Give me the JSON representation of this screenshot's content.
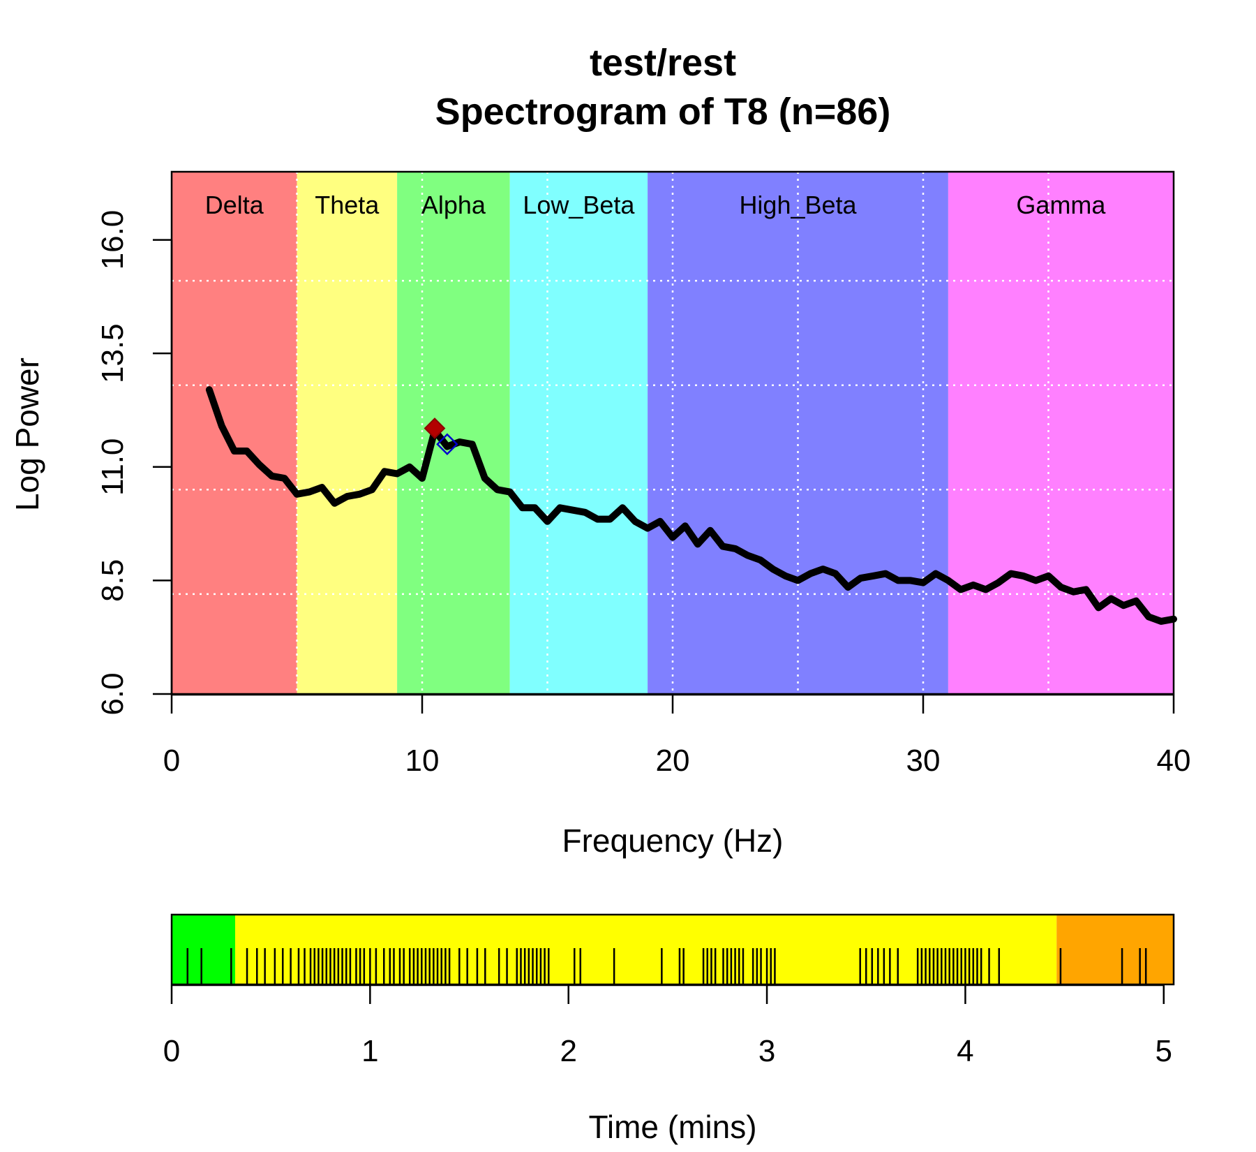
{
  "chart_data": [
    {
      "type": "line",
      "title_line1": "test/rest",
      "title_line2": "Spectrogram of T8 (n=86)",
      "xlabel": "Frequency (Hz)",
      "ylabel": "Log Power",
      "xlim": [
        0,
        40
      ],
      "ylim": [
        6.0,
        17.5
      ],
      "xticks": [
        0,
        10,
        20,
        30,
        40
      ],
      "xtick_labels": [
        "0",
        "10",
        "20",
        "30",
        "40"
      ],
      "yticks": [
        6.0,
        8.5,
        11.0,
        13.5,
        16.0
      ],
      "ytick_labels": [
        "6.0",
        "8.5",
        "11.0",
        "13.5",
        "16.0"
      ],
      "grid_x": [
        5,
        10,
        15,
        20,
        25,
        30,
        35
      ],
      "grid_y": [
        8.2,
        10.5,
        12.8,
        15.1
      ],
      "bands": [
        {
          "name": "Delta",
          "from": 0,
          "to": 5,
          "color": "#ff8080"
        },
        {
          "name": "Theta",
          "from": 5,
          "to": 9,
          "color": "#ffff80"
        },
        {
          "name": "Alpha",
          "from": 9,
          "to": 13.5,
          "color": "#80ff80"
        },
        {
          "name": "Low_Beta",
          "from": 13.5,
          "to": 19,
          "color": "#80ffff"
        },
        {
          "name": "High_Beta",
          "from": 19,
          "to": 31,
          "color": "#8080ff"
        },
        {
          "name": "Gamma",
          "from": 31,
          "to": 40,
          "color": "#ff80ff"
        }
      ],
      "series": [
        {
          "name": "T8",
          "color": "#000000",
          "points": [
            [
              1.5,
              12.7
            ],
            [
              2.0,
              11.9
            ],
            [
              2.5,
              11.35
            ],
            [
              3.0,
              11.35
            ],
            [
              3.5,
              11.05
            ],
            [
              4.0,
              10.8
            ],
            [
              4.5,
              10.75
            ],
            [
              5.0,
              10.4
            ],
            [
              5.5,
              10.45
            ],
            [
              6.0,
              10.55
            ],
            [
              6.5,
              10.2
            ],
            [
              7.0,
              10.35
            ],
            [
              7.5,
              10.4
            ],
            [
              8.0,
              10.5
            ],
            [
              8.5,
              10.9
            ],
            [
              9.0,
              10.85
            ],
            [
              9.5,
              11.0
            ],
            [
              10.0,
              10.75
            ],
            [
              10.5,
              11.8
            ],
            [
              11.0,
              11.45
            ],
            [
              11.5,
              11.55
            ],
            [
              12.0,
              11.5
            ],
            [
              12.5,
              10.75
            ],
            [
              13.0,
              10.5
            ],
            [
              13.5,
              10.45
            ],
            [
              14.0,
              10.1
            ],
            [
              14.5,
              10.1
            ],
            [
              15.0,
              9.8
            ],
            [
              15.5,
              10.1
            ],
            [
              16.0,
              10.05
            ],
            [
              16.5,
              10.0
            ],
            [
              17.0,
              9.85
            ],
            [
              17.5,
              9.85
            ],
            [
              18.0,
              10.1
            ],
            [
              18.5,
              9.8
            ],
            [
              19.0,
              9.65
            ],
            [
              19.5,
              9.8
            ],
            [
              20.0,
              9.45
            ],
            [
              20.5,
              9.7
            ],
            [
              21.0,
              9.3
            ],
            [
              21.5,
              9.6
            ],
            [
              22.0,
              9.25
            ],
            [
              22.5,
              9.2
            ],
            [
              23.0,
              9.05
            ],
            [
              23.5,
              8.95
            ],
            [
              24.0,
              8.75
            ],
            [
              24.5,
              8.6
            ],
            [
              25.0,
              8.5
            ],
            [
              25.5,
              8.65
            ],
            [
              26.0,
              8.75
            ],
            [
              26.5,
              8.65
            ],
            [
              27.0,
              8.35
            ],
            [
              27.5,
              8.55
            ],
            [
              28.0,
              8.6
            ],
            [
              28.5,
              8.65
            ],
            [
              29.0,
              8.5
            ],
            [
              29.5,
              8.5
            ],
            [
              30.0,
              8.45
            ],
            [
              30.5,
              8.65
            ],
            [
              31.0,
              8.5
            ],
            [
              31.5,
              8.3
            ],
            [
              32.0,
              8.4
            ],
            [
              32.5,
              8.3
            ],
            [
              33.0,
              8.45
            ],
            [
              33.5,
              8.65
            ],
            [
              34.0,
              8.6
            ],
            [
              34.5,
              8.5
            ],
            [
              35.0,
              8.6
            ],
            [
              35.5,
              8.35
            ],
            [
              36.0,
              8.25
            ],
            [
              36.5,
              8.3
            ],
            [
              37.0,
              7.9
            ],
            [
              37.5,
              8.1
            ],
            [
              38.0,
              7.95
            ],
            [
              38.5,
              8.05
            ],
            [
              39.0,
              7.7
            ],
            [
              39.5,
              7.6
            ],
            [
              40.0,
              7.65
            ]
          ]
        }
      ],
      "markers": [
        {
          "name": "peak-marker",
          "x": 10.5,
          "y": 11.85,
          "style": "filled-diamond",
          "color": "#b30000"
        },
        {
          "name": "center-marker",
          "x": 11.0,
          "y": 11.5,
          "style": "open-diamond",
          "color": "#0000cc"
        }
      ]
    },
    {
      "type": "timeline",
      "xlabel": "Time (mins)",
      "xlim": [
        0,
        5.05
      ],
      "xticks": [
        0,
        1,
        2,
        3,
        4,
        5
      ],
      "xtick_labels": [
        "0",
        "1",
        "2",
        "3",
        "4",
        "5"
      ],
      "segments": [
        {
          "from": 0,
          "to": 0.32,
          "color": "#00ff00"
        },
        {
          "from": 0.32,
          "to": 4.46,
          "color": "#ffff00"
        },
        {
          "from": 4.46,
          "to": 5.05,
          "color": "#ffa500"
        }
      ],
      "events": [
        0.08,
        0.15,
        0.3,
        0.38,
        0.43,
        0.47,
        0.52,
        0.56,
        0.6,
        0.64,
        0.67,
        0.7,
        0.72,
        0.74,
        0.76,
        0.78,
        0.8,
        0.82,
        0.84,
        0.86,
        0.88,
        0.9,
        0.93,
        0.95,
        0.97,
        1.0,
        1.03,
        1.07,
        1.1,
        1.12,
        1.15,
        1.17,
        1.2,
        1.22,
        1.24,
        1.26,
        1.28,
        1.3,
        1.32,
        1.34,
        1.36,
        1.38,
        1.4,
        1.45,
        1.49,
        1.54,
        1.58,
        1.65,
        1.69,
        1.74,
        1.76,
        1.78,
        1.8,
        1.82,
        1.84,
        1.86,
        1.88,
        1.9,
        2.03,
        2.06,
        2.23,
        2.47,
        2.56,
        2.58,
        2.68,
        2.7,
        2.72,
        2.74,
        2.78,
        2.8,
        2.82,
        2.84,
        2.86,
        2.88,
        2.93,
        2.95,
        2.97,
        3.0,
        3.02,
        3.04,
        3.47,
        3.5,
        3.53,
        3.56,
        3.59,
        3.62,
        3.66,
        3.76,
        3.78,
        3.8,
        3.82,
        3.84,
        3.86,
        3.88,
        3.9,
        3.92,
        3.94,
        3.96,
        3.98,
        4.0,
        4.02,
        4.04,
        4.06,
        4.08,
        4.12,
        4.17,
        4.48,
        4.79,
        4.88,
        4.91
      ]
    }
  ]
}
